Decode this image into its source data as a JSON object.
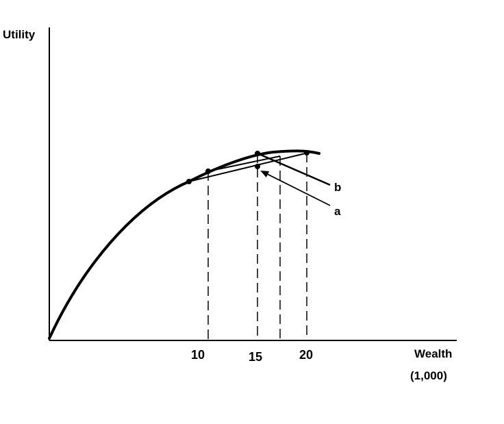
{
  "diagram": {
    "y_axis_label": "Utility",
    "x_axis_label_line1": "Wealth",
    "x_axis_label_line2": "(1,000)",
    "x_ticks": [
      "10",
      "15",
      "20"
    ],
    "annotations": {
      "a": "a",
      "b": "b"
    },
    "colors": {
      "ink": "#000000",
      "background": "#ffffff"
    }
  }
}
